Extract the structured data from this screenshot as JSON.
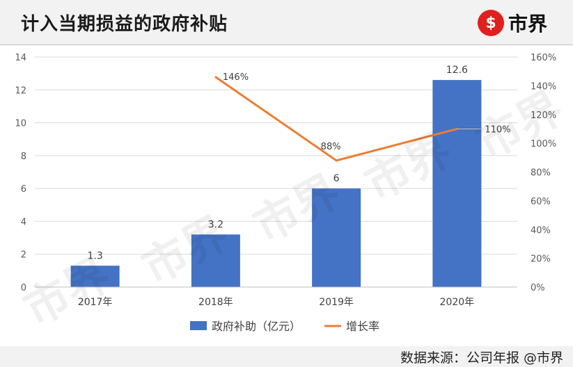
{
  "header": {
    "title": "计入当期损益的政府补贴",
    "logo_symbol": "$",
    "logo_text": "市界"
  },
  "watermark_text": "市界",
  "footer": {
    "source": "数据来源：公司年报 @市界"
  },
  "colors": {
    "bar": "#4472c4",
    "line": "#ed7d31",
    "logo_red": "#e0201e"
  },
  "chart_data": {
    "type": "bar",
    "categories": [
      "2017年",
      "2018年",
      "2019年",
      "2020年"
    ],
    "series": [
      {
        "name": "政府补助（亿元）",
        "type": "bar",
        "axis": "left",
        "values": [
          1.3,
          3.2,
          6,
          12.6
        ],
        "labels": [
          "1.3",
          "3.2",
          "6",
          "12.6"
        ]
      },
      {
        "name": "增长率",
        "type": "line",
        "axis": "right",
        "values": [
          null,
          146,
          88,
          110
        ],
        "labels": [
          "",
          "146%",
          "88%",
          "110%"
        ]
      }
    ],
    "y_left": {
      "min": 0,
      "max": 14,
      "ticks": [
        "0",
        "2",
        "4",
        "6",
        "8",
        "10",
        "12",
        "14"
      ]
    },
    "y_right": {
      "min": 0,
      "max": 160,
      "ticks": [
        "0%",
        "20%",
        "40%",
        "60%",
        "80%",
        "100%",
        "120%",
        "140%",
        "160%"
      ]
    },
    "grid": true,
    "legend": "bottom"
  }
}
